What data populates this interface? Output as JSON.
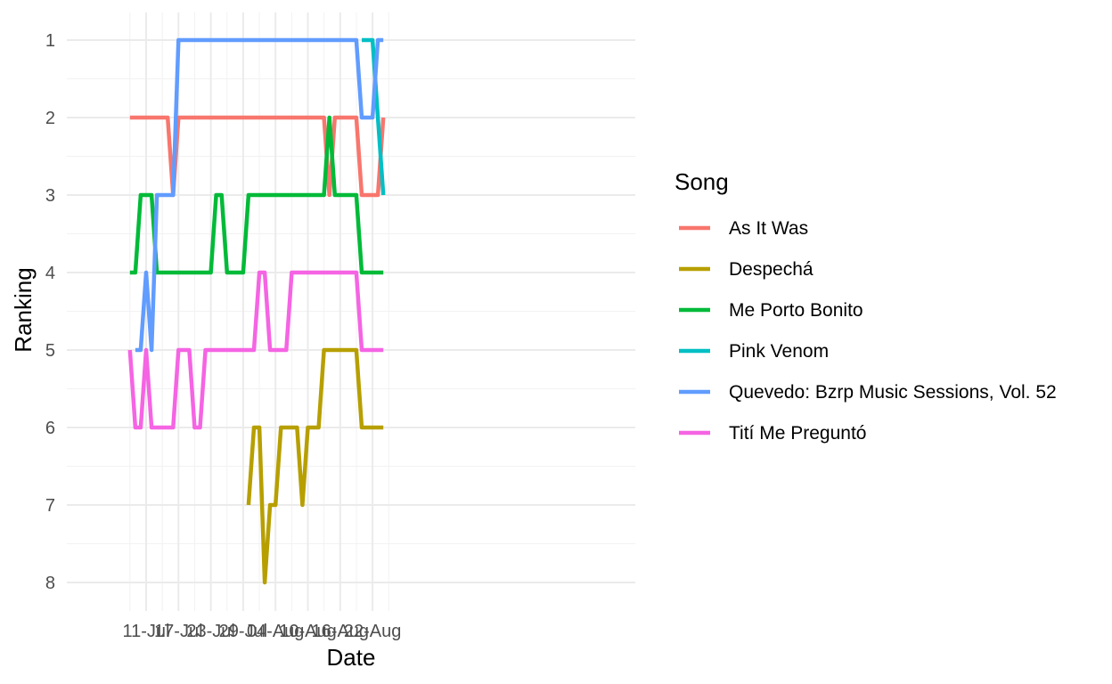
{
  "chart_data": {
    "type": "line",
    "title": "",
    "xlabel": "Date",
    "ylabel": "Ranking",
    "x_axis": "date",
    "x_ticks": [
      "2022-07-11",
      "2022-07-17",
      "2022-07-23",
      "2022-07-29",
      "2022-08-04",
      "2022-08-10",
      "2022-08-16",
      "2022-08-22"
    ],
    "x_tick_labels": [
      "11-Jul",
      "17-Jul",
      "23-Jul",
      "29-Jul",
      "04-Aug",
      "10-Aug",
      "16-Aug",
      "22-Aug"
    ],
    "xlim": [
      "2022-07-07",
      "2022-08-25"
    ],
    "y_reversed": true,
    "ylim": [
      1,
      8
    ],
    "y_ticks": [
      1,
      2,
      3,
      4,
      5,
      6,
      7,
      8
    ],
    "grid": true,
    "legend": {
      "title": "Song",
      "position": "right"
    },
    "series": [
      {
        "name": "As It Was",
        "color": "#F8766D",
        "points": [
          [
            "2022-07-08",
            2
          ],
          [
            "2022-07-09",
            2
          ],
          [
            "2022-07-10",
            2
          ],
          [
            "2022-07-11",
            2
          ],
          [
            "2022-07-12",
            2
          ],
          [
            "2022-07-13",
            2
          ],
          [
            "2022-07-14",
            2
          ],
          [
            "2022-07-15",
            2
          ],
          [
            "2022-07-16",
            3
          ],
          [
            "2022-07-17",
            2
          ],
          [
            "2022-07-18",
            2
          ],
          [
            "2022-07-19",
            2
          ],
          [
            "2022-07-20",
            2
          ],
          [
            "2022-07-21",
            2
          ],
          [
            "2022-07-22",
            2
          ],
          [
            "2022-07-23",
            2
          ],
          [
            "2022-07-24",
            2
          ],
          [
            "2022-07-25",
            2
          ],
          [
            "2022-07-26",
            2
          ],
          [
            "2022-07-27",
            2
          ],
          [
            "2022-07-28",
            2
          ],
          [
            "2022-07-29",
            2
          ],
          [
            "2022-07-30",
            2
          ],
          [
            "2022-07-31",
            2
          ],
          [
            "2022-08-01",
            2
          ],
          [
            "2022-08-02",
            2
          ],
          [
            "2022-08-03",
            2
          ],
          [
            "2022-08-04",
            2
          ],
          [
            "2022-08-05",
            2
          ],
          [
            "2022-08-06",
            2
          ],
          [
            "2022-08-07",
            2
          ],
          [
            "2022-08-08",
            2
          ],
          [
            "2022-08-09",
            2
          ],
          [
            "2022-08-10",
            2
          ],
          [
            "2022-08-11",
            2
          ],
          [
            "2022-08-12",
            2
          ],
          [
            "2022-08-13",
            2
          ],
          [
            "2022-08-14",
            3
          ],
          [
            "2022-08-15",
            2
          ],
          [
            "2022-08-16",
            2
          ],
          [
            "2022-08-17",
            2
          ],
          [
            "2022-08-18",
            2
          ],
          [
            "2022-08-19",
            2
          ],
          [
            "2022-08-20",
            3
          ],
          [
            "2022-08-21",
            3
          ],
          [
            "2022-08-22",
            3
          ],
          [
            "2022-08-23",
            3
          ],
          [
            "2022-08-24",
            2
          ]
        ]
      },
      {
        "name": "Despechá",
        "color": "#B79F00",
        "points": [
          [
            "2022-07-30",
            7
          ],
          [
            "2022-07-31",
            6
          ],
          [
            "2022-08-01",
            6
          ],
          [
            "2022-08-02",
            8
          ],
          [
            "2022-08-03",
            7
          ],
          [
            "2022-08-04",
            7
          ],
          [
            "2022-08-05",
            6
          ],
          [
            "2022-08-06",
            6
          ],
          [
            "2022-08-07",
            6
          ],
          [
            "2022-08-08",
            6
          ],
          [
            "2022-08-09",
            7
          ],
          [
            "2022-08-10",
            6
          ],
          [
            "2022-08-11",
            6
          ],
          [
            "2022-08-12",
            6
          ],
          [
            "2022-08-13",
            5
          ],
          [
            "2022-08-14",
            5
          ],
          [
            "2022-08-15",
            5
          ],
          [
            "2022-08-16",
            5
          ],
          [
            "2022-08-17",
            5
          ],
          [
            "2022-08-18",
            5
          ],
          [
            "2022-08-19",
            5
          ],
          [
            "2022-08-20",
            6
          ],
          [
            "2022-08-21",
            6
          ],
          [
            "2022-08-22",
            6
          ],
          [
            "2022-08-23",
            6
          ],
          [
            "2022-08-24",
            6
          ]
        ]
      },
      {
        "name": "Me Porto Bonito",
        "color": "#00BA38",
        "points": [
          [
            "2022-07-08",
            4
          ],
          [
            "2022-07-09",
            4
          ],
          [
            "2022-07-10",
            3
          ],
          [
            "2022-07-11",
            3
          ],
          [
            "2022-07-12",
            3
          ],
          [
            "2022-07-13",
            4
          ],
          [
            "2022-07-14",
            4
          ],
          [
            "2022-07-15",
            4
          ],
          [
            "2022-07-16",
            4
          ],
          [
            "2022-07-17",
            4
          ],
          [
            "2022-07-18",
            4
          ],
          [
            "2022-07-19",
            4
          ],
          [
            "2022-07-20",
            4
          ],
          [
            "2022-07-21",
            4
          ],
          [
            "2022-07-22",
            4
          ],
          [
            "2022-07-23",
            4
          ],
          [
            "2022-07-24",
            3
          ],
          [
            "2022-07-25",
            3
          ],
          [
            "2022-07-26",
            4
          ],
          [
            "2022-07-27",
            4
          ],
          [
            "2022-07-28",
            4
          ],
          [
            "2022-07-29",
            4
          ],
          [
            "2022-07-30",
            3
          ],
          [
            "2022-07-31",
            3
          ],
          [
            "2022-08-01",
            3
          ],
          [
            "2022-08-02",
            3
          ],
          [
            "2022-08-03",
            3
          ],
          [
            "2022-08-04",
            3
          ],
          [
            "2022-08-05",
            3
          ],
          [
            "2022-08-06",
            3
          ],
          [
            "2022-08-07",
            3
          ],
          [
            "2022-08-08",
            3
          ],
          [
            "2022-08-09",
            3
          ],
          [
            "2022-08-10",
            3
          ],
          [
            "2022-08-11",
            3
          ],
          [
            "2022-08-12",
            3
          ],
          [
            "2022-08-13",
            3
          ],
          [
            "2022-08-14",
            2
          ],
          [
            "2022-08-15",
            3
          ],
          [
            "2022-08-16",
            3
          ],
          [
            "2022-08-17",
            3
          ],
          [
            "2022-08-18",
            3
          ],
          [
            "2022-08-19",
            3
          ],
          [
            "2022-08-20",
            4
          ],
          [
            "2022-08-21",
            4
          ],
          [
            "2022-08-22",
            4
          ],
          [
            "2022-08-23",
            4
          ],
          [
            "2022-08-24",
            4
          ]
        ]
      },
      {
        "name": "Pink Venom",
        "color": "#00BFC4",
        "points": [
          [
            "2022-08-20",
            1
          ],
          [
            "2022-08-21",
            1
          ],
          [
            "2022-08-22",
            1
          ],
          [
            "2022-08-23",
            2
          ],
          [
            "2022-08-24",
            3
          ]
        ]
      },
      {
        "name": "Quevedo: Bzrp Music Sessions, Vol. 52",
        "color": "#619CFF",
        "points": [
          [
            "2022-07-09",
            5
          ],
          [
            "2022-07-10",
            5
          ],
          [
            "2022-07-11",
            4
          ],
          [
            "2022-07-12",
            5
          ],
          [
            "2022-07-13",
            3
          ],
          [
            "2022-07-14",
            3
          ],
          [
            "2022-07-15",
            3
          ],
          [
            "2022-07-16",
            3
          ],
          [
            "2022-07-17",
            1
          ],
          [
            "2022-07-18",
            1
          ],
          [
            "2022-07-19",
            1
          ],
          [
            "2022-07-20",
            1
          ],
          [
            "2022-07-21",
            1
          ],
          [
            "2022-07-22",
            1
          ],
          [
            "2022-07-23",
            1
          ],
          [
            "2022-07-24",
            1
          ],
          [
            "2022-07-25",
            1
          ],
          [
            "2022-07-26",
            1
          ],
          [
            "2022-07-27",
            1
          ],
          [
            "2022-07-28",
            1
          ],
          [
            "2022-07-29",
            1
          ],
          [
            "2022-07-30",
            1
          ],
          [
            "2022-07-31",
            1
          ],
          [
            "2022-08-01",
            1
          ],
          [
            "2022-08-02",
            1
          ],
          [
            "2022-08-03",
            1
          ],
          [
            "2022-08-04",
            1
          ],
          [
            "2022-08-05",
            1
          ],
          [
            "2022-08-06",
            1
          ],
          [
            "2022-08-07",
            1
          ],
          [
            "2022-08-08",
            1
          ],
          [
            "2022-08-09",
            1
          ],
          [
            "2022-08-10",
            1
          ],
          [
            "2022-08-11",
            1
          ],
          [
            "2022-08-12",
            1
          ],
          [
            "2022-08-13",
            1
          ],
          [
            "2022-08-14",
            1
          ],
          [
            "2022-08-15",
            1
          ],
          [
            "2022-08-16",
            1
          ],
          [
            "2022-08-17",
            1
          ],
          [
            "2022-08-18",
            1
          ],
          [
            "2022-08-19",
            1
          ],
          [
            "2022-08-20",
            2
          ],
          [
            "2022-08-21",
            2
          ],
          [
            "2022-08-22",
            2
          ],
          [
            "2022-08-23",
            1
          ],
          [
            "2022-08-24",
            1
          ]
        ]
      },
      {
        "name": "Tití Me Preguntó",
        "color": "#F564E3",
        "points": [
          [
            "2022-07-08",
            5
          ],
          [
            "2022-07-09",
            6
          ],
          [
            "2022-07-10",
            6
          ],
          [
            "2022-07-11",
            5
          ],
          [
            "2022-07-12",
            6
          ],
          [
            "2022-07-13",
            6
          ],
          [
            "2022-07-14",
            6
          ],
          [
            "2022-07-15",
            6
          ],
          [
            "2022-07-16",
            6
          ],
          [
            "2022-07-17",
            5
          ],
          [
            "2022-07-18",
            5
          ],
          [
            "2022-07-19",
            5
          ],
          [
            "2022-07-20",
            6
          ],
          [
            "2022-07-21",
            6
          ],
          [
            "2022-07-22",
            5
          ],
          [
            "2022-07-23",
            5
          ],
          [
            "2022-07-24",
            5
          ],
          [
            "2022-07-25",
            5
          ],
          [
            "2022-07-26",
            5
          ],
          [
            "2022-07-27",
            5
          ],
          [
            "2022-07-28",
            5
          ],
          [
            "2022-07-29",
            5
          ],
          [
            "2022-07-30",
            5
          ],
          [
            "2022-07-31",
            5
          ],
          [
            "2022-08-01",
            4
          ],
          [
            "2022-08-02",
            4
          ],
          [
            "2022-08-03",
            5
          ],
          [
            "2022-08-04",
            5
          ],
          [
            "2022-08-05",
            5
          ],
          [
            "2022-08-06",
            5
          ],
          [
            "2022-08-07",
            4
          ],
          [
            "2022-08-08",
            4
          ],
          [
            "2022-08-09",
            4
          ],
          [
            "2022-08-10",
            4
          ],
          [
            "2022-08-11",
            4
          ],
          [
            "2022-08-12",
            4
          ],
          [
            "2022-08-13",
            4
          ],
          [
            "2022-08-14",
            4
          ],
          [
            "2022-08-15",
            4
          ],
          [
            "2022-08-16",
            4
          ],
          [
            "2022-08-17",
            4
          ],
          [
            "2022-08-18",
            4
          ],
          [
            "2022-08-19",
            4
          ],
          [
            "2022-08-20",
            5
          ],
          [
            "2022-08-21",
            5
          ],
          [
            "2022-08-22",
            5
          ],
          [
            "2022-08-23",
            5
          ],
          [
            "2022-08-24",
            5
          ]
        ]
      }
    ]
  }
}
